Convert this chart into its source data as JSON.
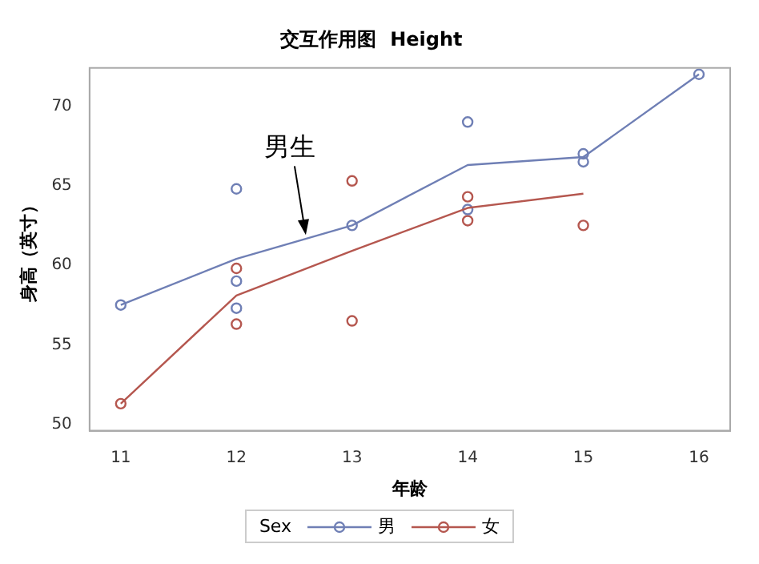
{
  "chart_data": {
    "type": "line",
    "title": "交互作用图  Height",
    "xlabel": "年龄",
    "ylabel": "身高（英寸）",
    "legend_title": "Sex",
    "xlim": [
      10.73,
      16.27
    ],
    "xticks": [
      11,
      12,
      13,
      14,
      15,
      16
    ],
    "ylim": [
      49.6,
      72.4
    ],
    "yticks": [
      50,
      55,
      60,
      65,
      70
    ],
    "grid": false,
    "legend": "bottom",
    "series": [
      {
        "name": "男",
        "marker": "none",
        "color": "#6f7fb5",
        "x": [
          11,
          12,
          13,
          14,
          15,
          16
        ],
        "values": [
          57.5,
          60.4,
          62.5,
          66.3,
          66.8,
          72.0
        ]
      },
      {
        "name": "女",
        "marker": "none",
        "color": "#b5574f",
        "x": [
          11,
          12,
          13,
          14,
          15
        ],
        "values": [
          51.3,
          58.1,
          60.9,
          63.6,
          64.5
        ]
      },
      {
        "type": "scatter",
        "marker": "circle",
        "color": "#6f7fb5",
        "x": [
          11,
          12,
          12,
          12,
          13,
          14,
          14,
          15,
          15,
          16
        ],
        "values": [
          57.5,
          64.8,
          59.0,
          57.3,
          62.5,
          69.0,
          63.5,
          67.0,
          66.5,
          72.0
        ]
      },
      {
        "type": "scatter",
        "marker": "circle",
        "color": "#b5574f",
        "x": [
          11,
          12,
          12,
          13,
          13,
          14,
          14,
          15
        ],
        "values": [
          51.3,
          59.8,
          56.3,
          65.3,
          56.5,
          64.3,
          62.8,
          62.5
        ]
      }
    ],
    "annotations": [
      {
        "text": "男生",
        "x": 12.6,
        "y": 61.7
      }
    ]
  }
}
